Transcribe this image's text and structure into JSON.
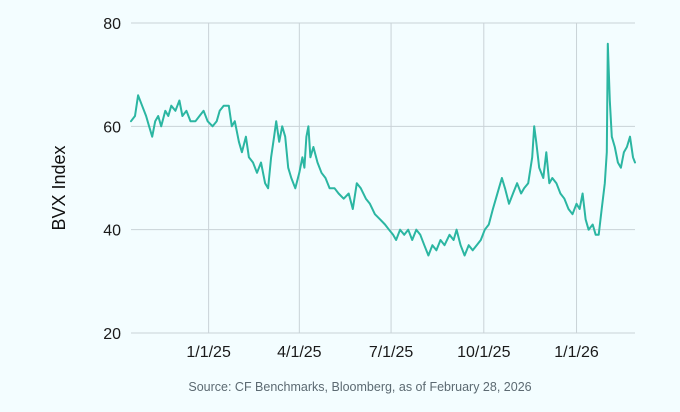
{
  "chart_data": {
    "type": "line",
    "ylabel": "BVX Index",
    "xlabel": "",
    "ylim": [
      20,
      80
    ],
    "yticks": [
      20,
      40,
      60,
      80
    ],
    "xlim": [
      "2024-10-16",
      "2026-02-28"
    ],
    "xticks": [
      {
        "date": "2025-01-01",
        "label": "1/1/25"
      },
      {
        "date": "2025-04-01",
        "label": "4/1/25"
      },
      {
        "date": "2025-07-01",
        "label": "7/1/25"
      },
      {
        "date": "2025-10-01",
        "label": "10/1/25"
      },
      {
        "date": "2026-01-01",
        "label": "1/1/26"
      }
    ],
    "grid": true,
    "line_color": "#2bb6a2",
    "series": [
      {
        "points": [
          [
            "2024-10-16",
            61
          ],
          [
            "2024-10-20",
            62
          ],
          [
            "2024-10-23",
            66
          ],
          [
            "2024-10-27",
            64
          ],
          [
            "2024-10-31",
            62
          ],
          [
            "2024-11-03",
            60
          ],
          [
            "2024-11-06",
            58
          ],
          [
            "2024-11-09",
            61
          ],
          [
            "2024-11-12",
            62
          ],
          [
            "2024-11-15",
            60
          ],
          [
            "2024-11-19",
            63
          ],
          [
            "2024-11-22",
            62
          ],
          [
            "2024-11-25",
            64
          ],
          [
            "2024-11-29",
            63
          ],
          [
            "2024-12-03",
            65
          ],
          [
            "2024-12-06",
            62
          ],
          [
            "2024-12-10",
            63
          ],
          [
            "2024-12-14",
            61
          ],
          [
            "2024-12-19",
            61
          ],
          [
            "2024-12-23",
            62
          ],
          [
            "2024-12-27",
            63
          ],
          [
            "2024-12-31",
            61
          ],
          [
            "2025-01-05",
            60
          ],
          [
            "2025-01-09",
            61
          ],
          [
            "2025-01-12",
            63
          ],
          [
            "2025-01-16",
            64
          ],
          [
            "2025-01-21",
            64
          ],
          [
            "2025-01-24",
            60
          ],
          [
            "2025-01-27",
            61
          ],
          [
            "2025-01-31",
            57
          ],
          [
            "2025-02-03",
            55
          ],
          [
            "2025-02-07",
            58
          ],
          [
            "2025-02-10",
            54
          ],
          [
            "2025-02-14",
            53
          ],
          [
            "2025-02-18",
            51
          ],
          [
            "2025-02-22",
            53
          ],
          [
            "2025-02-26",
            49
          ],
          [
            "2025-03-01",
            48
          ],
          [
            "2025-03-04",
            54
          ],
          [
            "2025-03-07",
            58
          ],
          [
            "2025-03-09",
            61
          ],
          [
            "2025-03-12",
            57
          ],
          [
            "2025-03-15",
            60
          ],
          [
            "2025-03-18",
            58
          ],
          [
            "2025-03-21",
            52
          ],
          [
            "2025-03-24",
            50
          ],
          [
            "2025-03-28",
            48
          ],
          [
            "2025-04-01",
            51
          ],
          [
            "2025-04-04",
            54
          ],
          [
            "2025-04-06",
            52
          ],
          [
            "2025-04-08",
            58
          ],
          [
            "2025-04-10",
            60
          ],
          [
            "2025-04-12",
            54
          ],
          [
            "2025-04-15",
            56
          ],
          [
            "2025-04-19",
            53
          ],
          [
            "2025-04-23",
            51
          ],
          [
            "2025-04-27",
            50
          ],
          [
            "2025-05-01",
            48
          ],
          [
            "2025-05-06",
            48
          ],
          [
            "2025-05-10",
            47
          ],
          [
            "2025-05-15",
            46
          ],
          [
            "2025-05-20",
            47
          ],
          [
            "2025-05-24",
            44
          ],
          [
            "2025-05-28",
            49
          ],
          [
            "2025-06-01",
            48
          ],
          [
            "2025-06-06",
            46
          ],
          [
            "2025-06-10",
            45
          ],
          [
            "2025-06-15",
            43
          ],
          [
            "2025-06-20",
            42
          ],
          [
            "2025-06-25",
            41
          ],
          [
            "2025-06-29",
            40
          ],
          [
            "2025-07-03",
            39
          ],
          [
            "2025-07-06",
            38
          ],
          [
            "2025-07-10",
            40
          ],
          [
            "2025-07-14",
            39
          ],
          [
            "2025-07-18",
            40
          ],
          [
            "2025-07-22",
            38
          ],
          [
            "2025-07-26",
            40
          ],
          [
            "2025-07-30",
            39
          ],
          [
            "2025-08-03",
            37
          ],
          [
            "2025-08-07",
            35
          ],
          [
            "2025-08-11",
            37
          ],
          [
            "2025-08-15",
            36
          ],
          [
            "2025-08-19",
            38
          ],
          [
            "2025-08-23",
            37
          ],
          [
            "2025-08-28",
            39
          ],
          [
            "2025-09-01",
            38
          ],
          [
            "2025-09-04",
            40
          ],
          [
            "2025-09-08",
            37
          ],
          [
            "2025-09-12",
            35
          ],
          [
            "2025-09-16",
            37
          ],
          [
            "2025-09-20",
            36
          ],
          [
            "2025-09-24",
            37
          ],
          [
            "2025-09-28",
            38
          ],
          [
            "2025-10-02",
            40
          ],
          [
            "2025-10-06",
            41
          ],
          [
            "2025-10-10",
            44
          ],
          [
            "2025-10-13",
            46
          ],
          [
            "2025-10-16",
            48
          ],
          [
            "2025-10-19",
            50
          ],
          [
            "2025-10-22",
            48
          ],
          [
            "2025-10-26",
            45
          ],
          [
            "2025-10-30",
            47
          ],
          [
            "2025-11-03",
            49
          ],
          [
            "2025-11-07",
            47
          ],
          [
            "2025-11-10",
            48
          ],
          [
            "2025-11-14",
            49
          ],
          [
            "2025-11-18",
            54
          ],
          [
            "2025-11-20",
            60
          ],
          [
            "2025-11-22",
            57
          ],
          [
            "2025-11-25",
            52
          ],
          [
            "2025-11-29",
            50
          ],
          [
            "2025-12-02",
            55
          ],
          [
            "2025-12-05",
            49
          ],
          [
            "2025-12-08",
            50
          ],
          [
            "2025-12-12",
            49
          ],
          [
            "2025-12-16",
            47
          ],
          [
            "2025-12-20",
            46
          ],
          [
            "2025-12-24",
            44
          ],
          [
            "2025-12-28",
            43
          ],
          [
            "2026-01-01",
            45
          ],
          [
            "2026-01-04",
            44
          ],
          [
            "2026-01-07",
            47
          ],
          [
            "2026-01-10",
            42
          ],
          [
            "2026-01-13",
            40
          ],
          [
            "2026-01-17",
            41
          ],
          [
            "2026-01-20",
            39
          ],
          [
            "2026-01-23",
            39
          ],
          [
            "2026-01-26",
            44
          ],
          [
            "2026-01-29",
            49
          ],
          [
            "2026-01-31",
            55
          ],
          [
            "2026-02-01",
            76
          ],
          [
            "2026-02-03",
            65
          ],
          [
            "2026-02-05",
            58
          ],
          [
            "2026-02-08",
            56
          ],
          [
            "2026-02-11",
            53
          ],
          [
            "2026-02-14",
            52
          ],
          [
            "2026-02-17",
            55
          ],
          [
            "2026-02-20",
            56
          ],
          [
            "2026-02-23",
            58
          ],
          [
            "2026-02-26",
            54
          ],
          [
            "2026-02-28",
            53
          ]
        ]
      }
    ],
    "source_note": "Source: CF Benchmarks, Bloomberg, as of February 28, 2026"
  }
}
